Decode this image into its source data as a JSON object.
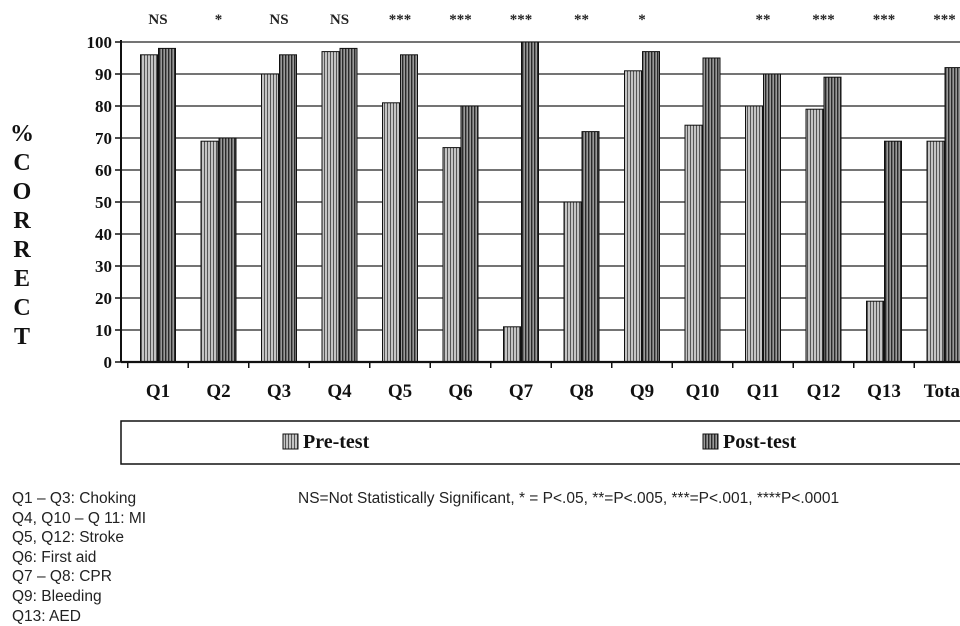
{
  "chart_data": {
    "type": "bar",
    "ylabel": "% CORRECT",
    "ylim": [
      0,
      100
    ],
    "yticks": [
      0,
      10,
      20,
      30,
      40,
      50,
      60,
      70,
      80,
      90,
      100
    ],
    "grid": true,
    "categories": [
      "Q1",
      "Q2",
      "Q3",
      "Q4",
      "Q5",
      "Q6",
      "Q7",
      "Q8",
      "Q9",
      "Q10",
      "Q11",
      "Q12",
      "Q13",
      "Total"
    ],
    "significance": [
      "NS",
      "*",
      "NS",
      "NS",
      "***",
      "***",
      "***",
      "**",
      "*",
      "",
      "**",
      "***",
      "***",
      "***"
    ],
    "series": [
      {
        "name": "Pre-test",
        "values": [
          96,
          69,
          90,
          97,
          81,
          67,
          11,
          50,
          91,
          74,
          80,
          79,
          19,
          69
        ]
      },
      {
        "name": "Post-test",
        "values": [
          98,
          70,
          96,
          98,
          96,
          80,
          100,
          72,
          97,
          95,
          90,
          89,
          69,
          92
        ]
      }
    ],
    "legend_position": "bottom"
  },
  "notes": [
    "Q1 – Q3: Choking",
    "Q4, Q10 – Q 11: MI",
    "Q5, Q12: Stroke",
    "Q6: First aid",
    "Q7 – Q8: CPR",
    "Q9: Bleeding",
    "Q13: AED"
  ],
  "significance_key": "NS=Not Statistically Significant, * = P<.05, **=P<.005, ***=P<.001, ****P<.0001",
  "colors": {
    "pre_fill": "#bdbdbd",
    "post_fill": "#8a8a8a",
    "stroke": "#111111"
  }
}
